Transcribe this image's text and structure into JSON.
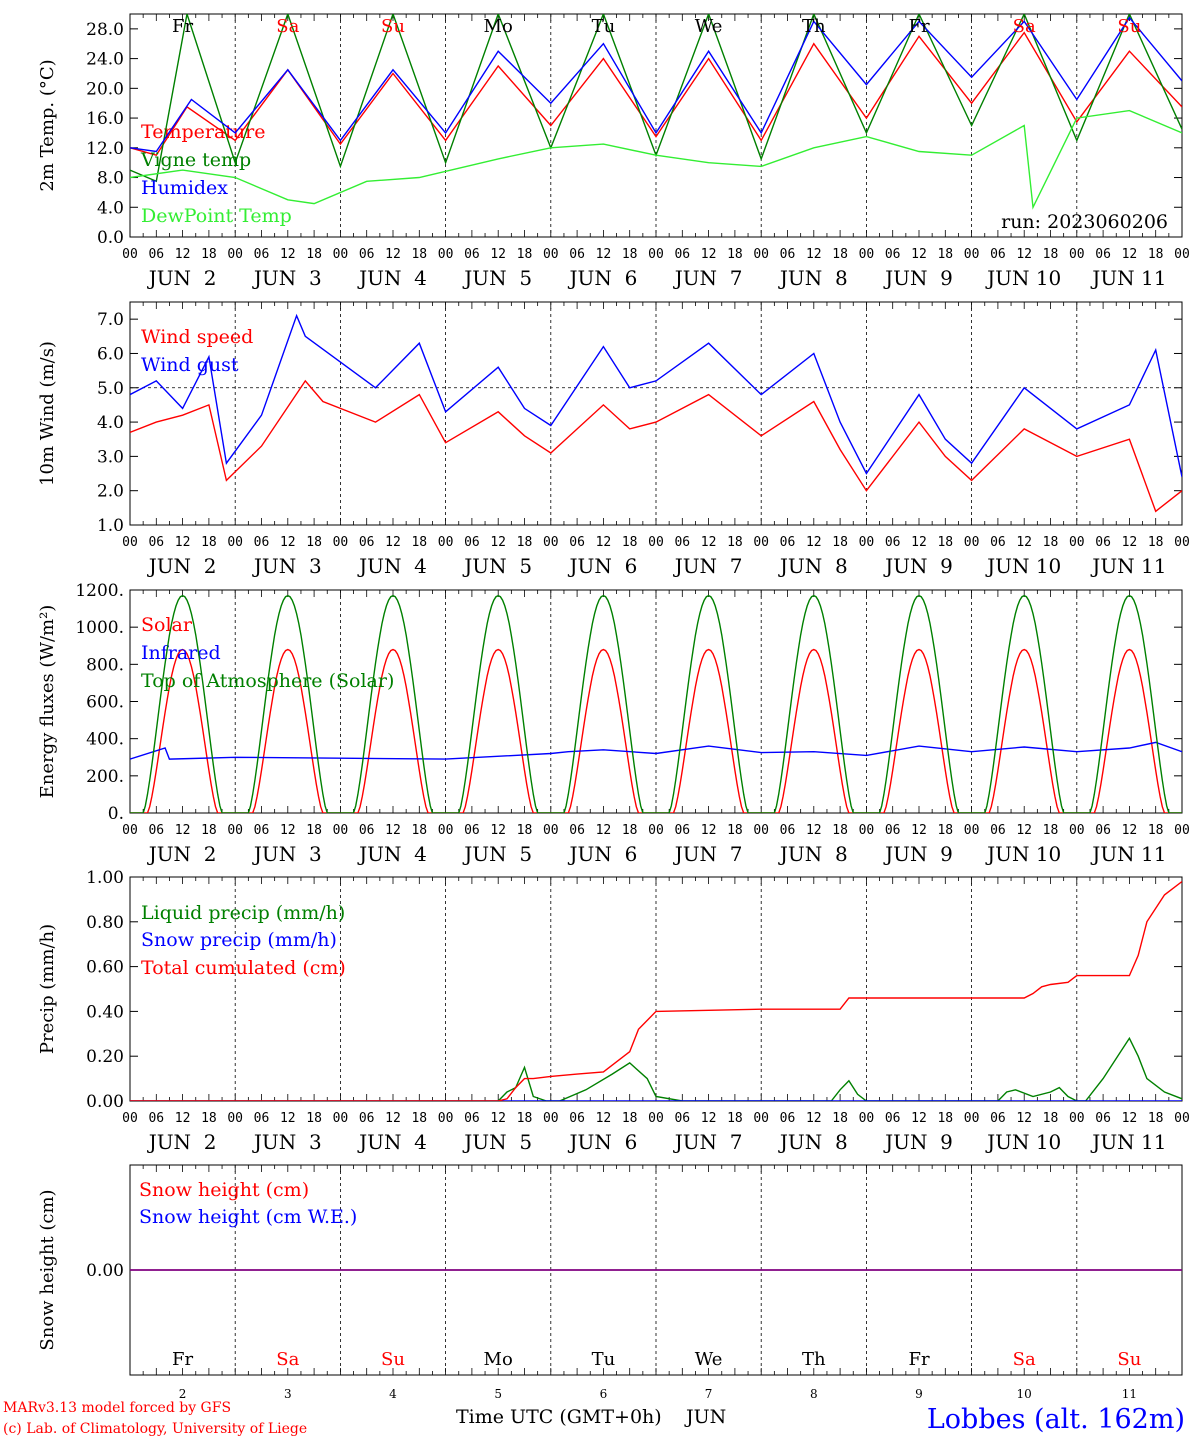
{
  "colors": {
    "red": "#ff0000",
    "green": "#008000",
    "blue": "#0000ff",
    "lightgreen": "#33ee33",
    "purple": "#800080",
    "black": "#000000"
  },
  "day_abbrevs": [
    {
      "label": "Fr",
      "weekend": false
    },
    {
      "label": "Sa",
      "weekend": true
    },
    {
      "label": "Su",
      "weekend": true
    },
    {
      "label": "Mo",
      "weekend": false
    },
    {
      "label": "Tu",
      "weekend": false
    },
    {
      "label": "We",
      "weekend": false
    },
    {
      "label": "Th",
      "weekend": false
    },
    {
      "label": "Fr",
      "weekend": false
    },
    {
      "label": "Sa",
      "weekend": true
    },
    {
      "label": "Su",
      "weekend": true
    }
  ],
  "hour_ticks": [
    "00",
    "06",
    "12",
    "18"
  ],
  "final_hour_tick": "00",
  "date_labels": [
    "JUN  2",
    "JUN  3",
    "JUN  4",
    "JUN  5",
    "JUN  6",
    "JUN  7",
    "JUN  8",
    "JUN  9",
    "JUN 10",
    "JUN 11"
  ],
  "bottom_day_numbers": [
    "2",
    "3",
    "4",
    "5",
    "6",
    "7",
    "8",
    "9",
    "10",
    "11"
  ],
  "footer": {
    "model_line": "MARv3.13 model forced by GFS",
    "credit_line": "(c) Lab. of Climatology, University of Liege",
    "xaxis_title": "Time UTC (GMT+0h)",
    "month": "JUN",
    "station": "Lobbes (alt. 162m)"
  },
  "chart_data": [
    {
      "id": "temperature",
      "type": "line",
      "ylabel": "2m Temp. (°C)",
      "ylim": [
        0,
        30
      ],
      "yticks": [
        "0.0",
        "4.0",
        "8.0",
        "12.0",
        "16.0",
        "20.0",
        "24.0",
        "28.0"
      ],
      "ytick_values": [
        0,
        4,
        8,
        12,
        16,
        20,
        24,
        28
      ],
      "run_label": "run: 2023060206",
      "x_unit": "hours since JUN 2 00 UTC",
      "series": [
        {
          "name": "Temperature",
          "color": "red",
          "x": [
            0,
            6,
            13,
            24,
            36,
            48,
            60,
            72,
            84,
            96,
            108,
            120,
            132,
            144,
            156,
            168,
            180,
            192,
            204,
            216,
            228,
            240
          ],
          "y": [
            12.0,
            11.0,
            17.5,
            13.0,
            22.5,
            12.5,
            22.0,
            13.0,
            23.0,
            15.0,
            24.0,
            13.5,
            24.0,
            13.0,
            26.0,
            16.0,
            27.0,
            18.0,
            27.5,
            15.5,
            25.0,
            17.5
          ]
        },
        {
          "name": "Vigne temp",
          "color": "green",
          "x": [
            0,
            6,
            13,
            24,
            36,
            48,
            60,
            72,
            84,
            96,
            108,
            120,
            132,
            144,
            156,
            168,
            180,
            192,
            204,
            216,
            228,
            240
          ],
          "y": [
            9.0,
            7.5,
            30.0,
            10.0,
            30.0,
            9.5,
            30.0,
            10.0,
            30.0,
            12.0,
            30.0,
            11.0,
            30.0,
            10.5,
            30.0,
            14.0,
            30.0,
            15.0,
            30.0,
            13.0,
            30.0,
            14.5
          ]
        },
        {
          "name": "Humidex",
          "color": "blue",
          "x": [
            0,
            6,
            14,
            24,
            36,
            48,
            60,
            72,
            84,
            96,
            108,
            120,
            132,
            144,
            156,
            168,
            180,
            192,
            204,
            216,
            228,
            240
          ],
          "y": [
            12.0,
            11.5,
            18.5,
            14.0,
            22.5,
            13.0,
            22.5,
            14.0,
            25.0,
            18.0,
            26.0,
            14.0,
            25.0,
            14.0,
            29.0,
            20.5,
            29.0,
            21.5,
            29.0,
            18.5,
            29.5,
            21.0
          ]
        },
        {
          "name": "DewPoint Temp",
          "color": "lightgreen",
          "x": [
            0,
            12,
            24,
            36,
            42,
            54,
            66,
            84,
            96,
            108,
            120,
            132,
            144,
            156,
            168,
            180,
            192,
            204,
            206,
            216,
            228,
            240
          ],
          "y": [
            8.0,
            9.0,
            8.0,
            5.0,
            4.5,
            7.5,
            8.0,
            10.5,
            12.0,
            12.5,
            11.0,
            10.0,
            9.5,
            12.0,
            13.5,
            11.5,
            11.0,
            15.0,
            4.0,
            16.0,
            17.0,
            14.0
          ]
        }
      ]
    },
    {
      "id": "wind",
      "type": "line",
      "ylabel": "10m Wind (m/s)",
      "ylim": [
        1,
        7.5
      ],
      "yticks": [
        "1.0",
        "2.0",
        "3.0",
        "4.0",
        "5.0",
        "6.0",
        "7.0"
      ],
      "ytick_values": [
        1,
        2,
        3,
        4,
        5,
        6,
        7
      ],
      "reference_line": 5.0,
      "series": [
        {
          "name": "Wind speed",
          "color": "red",
          "x": [
            0,
            6,
            12,
            18,
            22,
            30,
            40,
            44,
            56,
            66,
            72,
            84,
            90,
            96,
            108,
            114,
            120,
            132,
            144,
            156,
            162,
            168,
            180,
            186,
            192,
            204,
            216,
            228,
            234,
            240
          ],
          "y": [
            3.7,
            4.0,
            4.2,
            4.5,
            2.3,
            3.3,
            5.2,
            4.6,
            4.0,
            4.8,
            3.4,
            4.3,
            3.6,
            3.1,
            4.5,
            3.8,
            4.0,
            4.8,
            3.6,
            4.6,
            3.2,
            2.0,
            4.0,
            3.0,
            2.3,
            3.8,
            3.0,
            3.5,
            1.4,
            2.0
          ]
        },
        {
          "name": "Wind gust",
          "color": "blue",
          "x": [
            0,
            6,
            12,
            18,
            22,
            30,
            38,
            40,
            56,
            66,
            72,
            84,
            90,
            96,
            108,
            114,
            120,
            132,
            144,
            156,
            162,
            168,
            180,
            186,
            192,
            204,
            216,
            228,
            234,
            240
          ],
          "y": [
            4.8,
            5.2,
            4.4,
            5.9,
            2.8,
            4.2,
            7.1,
            6.5,
            5.0,
            6.3,
            4.3,
            5.6,
            4.4,
            3.9,
            6.2,
            5.0,
            5.2,
            6.3,
            4.8,
            6.0,
            4.0,
            2.5,
            4.8,
            3.5,
            2.8,
            5.0,
            3.8,
            4.5,
            6.1,
            2.4
          ]
        }
      ]
    },
    {
      "id": "energy",
      "type": "line",
      "ylabel": "Energy fluxes (W/m²)",
      "ylim": [
        0,
        1200
      ],
      "yticks": [
        "0.",
        "200.",
        "400.",
        "600.",
        "800.",
        "1000.",
        "1200."
      ],
      "ytick_values": [
        0,
        200,
        400,
        600,
        800,
        1000,
        1200
      ],
      "series": [
        {
          "name": "Solar",
          "color": "red",
          "daily_peak": 880,
          "sunrise_hour": 4,
          "sunset_hour": 20
        },
        {
          "name": "Infrared",
          "color": "blue",
          "x": [
            0,
            8,
            9,
            24,
            48,
            72,
            96,
            100,
            108,
            120,
            132,
            144,
            156,
            168,
            180,
            192,
            204,
            216,
            228,
            234,
            240
          ],
          "y": [
            290,
            350,
            290,
            300,
            295,
            290,
            320,
            330,
            340,
            320,
            360,
            325,
            330,
            310,
            360,
            330,
            355,
            330,
            350,
            380,
            330
          ]
        },
        {
          "name": "Top of Atmosphere (Solar)",
          "color": "green",
          "daily_peak": 1170,
          "sunrise_hour": 3,
          "sunset_hour": 21
        }
      ]
    },
    {
      "id": "precip",
      "type": "line",
      "ylabel": "Precip (mm/h)",
      "ylim": [
        0,
        1.0
      ],
      "yticks": [
        "0.00",
        "0.20",
        "0.40",
        "0.60",
        "0.80",
        "1.00"
      ],
      "ytick_values": [
        0,
        0.2,
        0.4,
        0.6,
        0.8,
        1.0
      ],
      "series": [
        {
          "name": "Liquid precip (mm/h)",
          "color": "green",
          "x": [
            0,
            84,
            86,
            88,
            90,
            92,
            95,
            98,
            104,
            110,
            114,
            118,
            120,
            126,
            160,
            162,
            164,
            166,
            168,
            198,
            200,
            202,
            206,
            210,
            212,
            214,
            216,
            218,
            222,
            226,
            228,
            230,
            232,
            236,
            240
          ],
          "y": [
            0,
            0,
            0.04,
            0.06,
            0.15,
            0.02,
            0,
            0,
            0.05,
            0.12,
            0.17,
            0.1,
            0.02,
            0,
            0,
            0.05,
            0.09,
            0.03,
            0,
            0,
            0.04,
            0.05,
            0.02,
            0.04,
            0.06,
            0.02,
            0,
            0,
            0.1,
            0.22,
            0.28,
            0.2,
            0.1,
            0.04,
            0.01
          ]
        },
        {
          "name": "Snow precip (mm/h)",
          "color": "blue",
          "x": [
            0,
            240
          ],
          "y": [
            0,
            0
          ]
        },
        {
          "name": "Total cumulated (cm)",
          "color": "red",
          "x": [
            0,
            84,
            86,
            88,
            90,
            92,
            96,
            102,
            108,
            114,
            116,
            120,
            144,
            162,
            164,
            168,
            204,
            206,
            208,
            210,
            214,
            216,
            228,
            230,
            232,
            236,
            240
          ],
          "y": [
            0,
            0,
            0.01,
            0.06,
            0.1,
            0.1,
            0.11,
            0.12,
            0.13,
            0.22,
            0.32,
            0.4,
            0.41,
            0.41,
            0.46,
            0.46,
            0.46,
            0.48,
            0.51,
            0.52,
            0.53,
            0.56,
            0.56,
            0.65,
            0.8,
            0.92,
            0.98
          ]
        }
      ]
    },
    {
      "id": "snow",
      "type": "line",
      "ylabel": "Snow height (cm)",
      "ylim": [
        -1,
        1
      ],
      "yticks": [
        "0.00"
      ],
      "ytick_values": [
        0
      ],
      "series": [
        {
          "name": "Snow height (cm)",
          "color": "red",
          "x": [
            0,
            240
          ],
          "y": [
            0,
            0
          ]
        },
        {
          "name": "Snow height (cm W.E.)",
          "color": "blue",
          "x": [
            0,
            240
          ],
          "y": [
            0,
            0
          ]
        }
      ]
    }
  ]
}
